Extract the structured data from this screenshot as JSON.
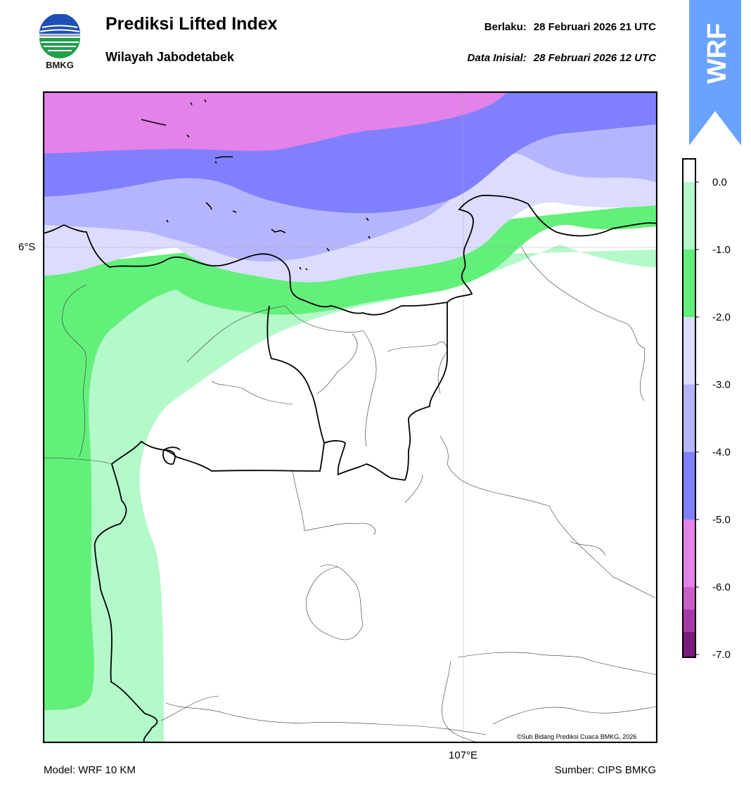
{
  "header": {
    "logo_text": "BMKG",
    "title": "Prediksi Lifted Index",
    "subtitle": "Wilayah Jabodetabek",
    "valid_label": "Berlaku:",
    "valid_value": "28 Februari 2026 21 UTC",
    "init_label": "Data Inisial:",
    "init_value": "28 Februari 2026 12 UTC"
  },
  "banner": {
    "text": "WRF",
    "color": "#6aa2ff"
  },
  "map": {
    "lat_label": "6°S",
    "lon_label": "107°E",
    "credit": "©Sub Bidang Prediksi Cuaca BMKG, 2026",
    "bands": [
      {
        "range": "< -5.0",
        "color": "#e382e8"
      },
      {
        "range": "-5.0 to -4.0",
        "color": "#8080ff"
      },
      {
        "range": "-4.0 to -3.0",
        "color": "#b5b5ff"
      },
      {
        "range": "-3.0 to -2.0",
        "color": "#dcdcff"
      },
      {
        "range": "-2.0 to -1.0",
        "color": "#62f07a"
      },
      {
        "range": "-1.0 to 0.0",
        "color": "#b3f9c9"
      },
      {
        "range": "> 0.0",
        "color": "#ffffff"
      }
    ]
  },
  "legend": {
    "ticks": [
      "0.0",
      "-1.0",
      "-2.0",
      "-3.0",
      "-4.0",
      "-5.0",
      "-6.0",
      "-7.0"
    ],
    "colors": [
      "#ffffff",
      "#b3f9c9",
      "#62f07a",
      "#dcdcff",
      "#b5b5ff",
      "#8080ff",
      "#e382e8",
      "#c85ec8",
      "#a83aa8",
      "#7a1a7a"
    ]
  },
  "footer": {
    "model": "Model: WRF 10 KM",
    "source": "Sumber: CIPS BMKG"
  }
}
